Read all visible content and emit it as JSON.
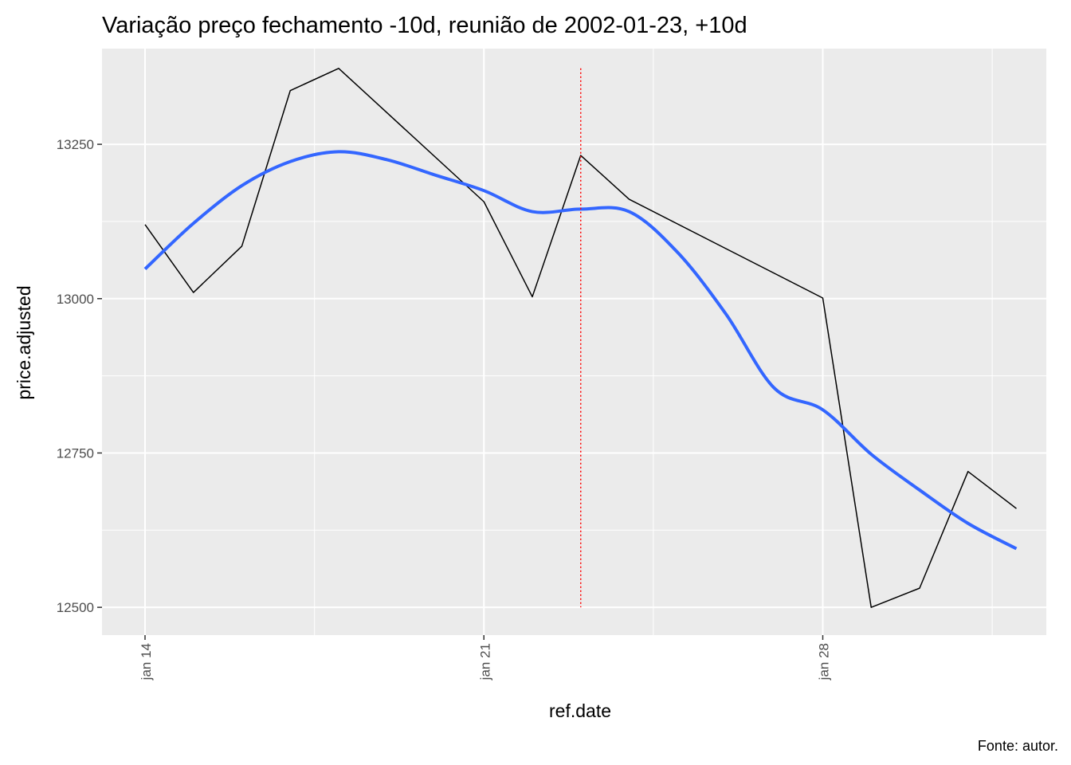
{
  "chart_data": {
    "type": "line",
    "title": "Variação preço fechamento -10d, reunião de 2002-01-23, +10d",
    "xlabel": "ref.date",
    "ylabel": "price.adjusted",
    "caption": "Fonte: autor.",
    "x_ticks": [
      {
        "label": "jan 14",
        "day": 14
      },
      {
        "label": "jan 21",
        "day": 21
      },
      {
        "label": "jan 28",
        "day": 28
      }
    ],
    "y_ticks": [
      {
        "label": "12500",
        "value": 12500
      },
      {
        "label": "12750",
        "value": 12750
      },
      {
        "label": "13000",
        "value": 13000
      },
      {
        "label": "13250",
        "value": 13250
      }
    ],
    "xlim": [
      "2002-01-13",
      "2002-02-02"
    ],
    "ylim": [
      12455,
      13405
    ],
    "grid": true,
    "series": [
      {
        "style": "line",
        "color": "#000000",
        "points": [
          {
            "date": "2002-01-14",
            "value": 13120
          },
          {
            "date": "2002-01-15",
            "value": 13010
          },
          {
            "date": "2002-01-16",
            "value": 13085
          },
          {
            "date": "2002-01-17",
            "value": 13337
          },
          {
            "date": "2002-01-18",
            "value": 13373
          },
          {
            "date": "2002-01-21",
            "value": 13157
          },
          {
            "date": "2002-01-22",
            "value": 13003
          },
          {
            "date": "2002-01-23",
            "value": 13232
          },
          {
            "date": "2002-01-24",
            "value": 13161
          },
          {
            "date": "2002-01-28",
            "value": 13001
          },
          {
            "date": "2002-01-29",
            "value": 12500
          },
          {
            "date": "2002-01-30",
            "value": 12531
          },
          {
            "date": "2002-01-31",
            "value": 12720
          },
          {
            "date": "2002-02-01",
            "value": 12660
          }
        ]
      },
      {
        "style": "smooth",
        "color": "#3366ff",
        "points": [
          {
            "date": "2002-01-14",
            "value": 13048
          },
          {
            "date": "2002-01-15",
            "value": 13122
          },
          {
            "date": "2002-01-16",
            "value": 13183
          },
          {
            "date": "2002-01-17",
            "value": 13222
          },
          {
            "date": "2002-01-18",
            "value": 13238
          },
          {
            "date": "2002-01-19",
            "value": 13225
          },
          {
            "date": "2002-01-20",
            "value": 13200
          },
          {
            "date": "2002-01-21",
            "value": 13175
          },
          {
            "date": "2002-01-22",
            "value": 13141
          },
          {
            "date": "2002-01-23",
            "value": 13145
          },
          {
            "date": "2002-01-24",
            "value": 13141
          },
          {
            "date": "2002-01-25",
            "value": 13075
          },
          {
            "date": "2002-01-26",
            "value": 12975
          },
          {
            "date": "2002-01-27",
            "value": 12855
          },
          {
            "date": "2002-01-28",
            "value": 12820
          },
          {
            "date": "2002-01-29",
            "value": 12748
          },
          {
            "date": "2002-01-30",
            "value": 12690
          },
          {
            "date": "2002-01-31",
            "value": 12636
          },
          {
            "date": "2002-02-01",
            "value": 12595
          }
        ]
      }
    ],
    "vline": {
      "date": "2002-01-23",
      "color": "#ff0000",
      "style": "dotted"
    }
  }
}
